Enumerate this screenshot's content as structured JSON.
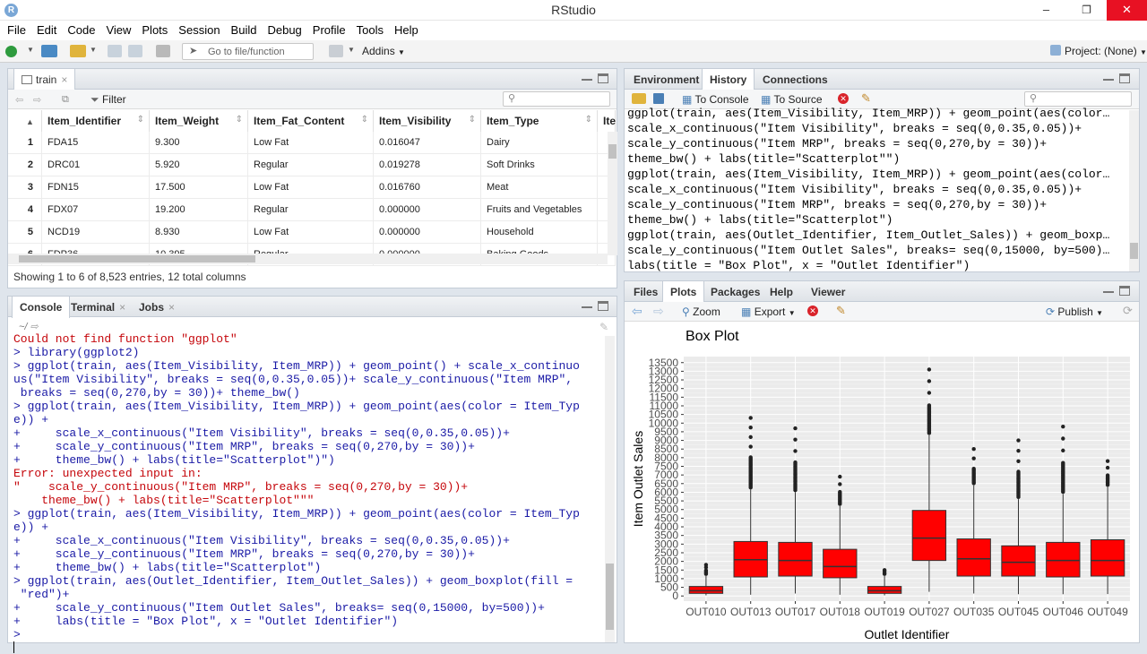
{
  "window": {
    "title": "RStudio",
    "app_icon": "R"
  },
  "menu": [
    "File",
    "Edit",
    "Code",
    "View",
    "Plots",
    "Session",
    "Build",
    "Debug",
    "Profile",
    "Tools",
    "Help"
  ],
  "toolbar": {
    "goto_placeholder": "Go to file/function",
    "addins": "Addins",
    "project": "Project: (None)"
  },
  "data_viewer": {
    "tab": "train",
    "filter": "Filter",
    "columns": [
      "Item_Identifier",
      "Item_Weight",
      "Item_Fat_Content",
      "Item_Visibility",
      "Item_Type",
      "Ite"
    ],
    "rows": [
      {
        "n": "1",
        "vals": [
          "FDA15",
          "9.300",
          "Low Fat",
          "0.016047",
          "Dairy"
        ]
      },
      {
        "n": "2",
        "vals": [
          "DRC01",
          "5.920",
          "Regular",
          "0.019278",
          "Soft Drinks"
        ]
      },
      {
        "n": "3",
        "vals": [
          "FDN15",
          "17.500",
          "Low Fat",
          "0.016760",
          "Meat"
        ]
      },
      {
        "n": "4",
        "vals": [
          "FDX07",
          "19.200",
          "Regular",
          "0.000000",
          "Fruits and Vegetables"
        ]
      },
      {
        "n": "5",
        "vals": [
          "NCD19",
          "8.930",
          "Low Fat",
          "0.000000",
          "Household"
        ]
      },
      {
        "n": "6",
        "vals": [
          "FDP36",
          "10.395",
          "Regular",
          "0.000000",
          "Baking Goods"
        ]
      }
    ],
    "status": "Showing 1 to 6 of 8,523 entries, 12 total columns"
  },
  "console": {
    "tabs": [
      "Console",
      "Terminal",
      "Jobs"
    ],
    "path": "~/",
    "lines": [
      {
        "t": "Could not find function \"ggplot\"",
        "k": "err"
      },
      {
        "t": "> library(ggplot2)",
        "k": "in"
      },
      {
        "t": "> ggplot(train, aes(Item_Visibility, Item_MRP)) + geom_point() + scale_x_continuo",
        "k": "in"
      },
      {
        "t": "us(\"Item Visibility\", breaks = seq(0,0.35,0.05))+ scale_y_continuous(\"Item MRP\",",
        "k": "in"
      },
      {
        "t": " breaks = seq(0,270,by = 30))+ theme_bw()",
        "k": "in"
      },
      {
        "t": "> ggplot(train, aes(Item_Visibility, Item_MRP)) + geom_point(aes(color = Item_Typ",
        "k": "in"
      },
      {
        "t": "e)) +",
        "k": "in"
      },
      {
        "t": "+     scale_x_continuous(\"Item Visibility\", breaks = seq(0,0.35,0.05))+",
        "k": "in"
      },
      {
        "t": "+     scale_y_continuous(\"Item MRP\", breaks = seq(0,270,by = 30))+",
        "k": "in"
      },
      {
        "t": "+     theme_bw() + labs(title=\"Scatterplot\")\")",
        "k": "in"
      },
      {
        "t": "Error: unexpected input in:",
        "k": "err"
      },
      {
        "t": "\"    scale_y_continuous(\"Item MRP\", breaks = seq(0,270,by = 30))+",
        "k": "err"
      },
      {
        "t": "    theme_bw() + labs(title=\"Scatterplot\"\"\"",
        "k": "err"
      },
      {
        "t": "> ggplot(train, aes(Item_Visibility, Item_MRP)) + geom_point(aes(color = Item_Typ",
        "k": "in"
      },
      {
        "t": "e)) +",
        "k": "in"
      },
      {
        "t": "+     scale_x_continuous(\"Item Visibility\", breaks = seq(0,0.35,0.05))+",
        "k": "in"
      },
      {
        "t": "+     scale_y_continuous(\"Item MRP\", breaks = seq(0,270,by = 30))+",
        "k": "in"
      },
      {
        "t": "+     theme_bw() + labs(title=\"Scatterplot\")",
        "k": "in"
      },
      {
        "t": "> ggplot(train, aes(Outlet_Identifier, Item_Outlet_Sales)) + geom_boxplot(fill =",
        "k": "in"
      },
      {
        "t": " \"red\")+",
        "k": "in"
      },
      {
        "t": "+     scale_y_continuous(\"Item Outlet Sales\", breaks= seq(0,15000, by=500))+",
        "k": "in"
      },
      {
        "t": "+     labs(title = \"Box Plot\", x = \"Outlet Identifier\")",
        "k": "in"
      },
      {
        "t": "> ",
        "k": "in"
      }
    ]
  },
  "environment": {
    "tabs": [
      "Environment",
      "History",
      "Connections"
    ],
    "to_console": "To Console",
    "to_source": "To Source",
    "history": [
      "ggplot(train, aes(Item_Visibility, Item_MRP)) + geom_point(aes(color…",
      "scale_x_continuous(\"Item Visibility\", breaks = seq(0,0.35,0.05))+",
      "scale_y_continuous(\"Item MRP\", breaks = seq(0,270,by = 30))+",
      "theme_bw() + labs(title=\"Scatterplot\"\")",
      "ggplot(train, aes(Item_Visibility, Item_MRP)) + geom_point(aes(color…",
      "scale_x_continuous(\"Item Visibility\", breaks = seq(0,0.35,0.05))+",
      "scale_y_continuous(\"Item MRP\", breaks = seq(0,270,by = 30))+",
      "theme_bw() + labs(title=\"Scatterplot\")",
      "ggplot(train, aes(Outlet_Identifier, Item_Outlet_Sales)) + geom_boxp…",
      "scale_y_continuous(\"Item Outlet Sales\", breaks= seq(0,15000, by=500)…",
      "labs(title = \"Box Plot\", x = \"Outlet Identifier\")"
    ]
  },
  "plots": {
    "tabs": [
      "Files",
      "Plots",
      "Packages",
      "Help",
      "Viewer"
    ],
    "zoom": "Zoom",
    "export": "Export",
    "publish": "Publish"
  },
  "chart_data": {
    "type": "boxplot",
    "title": "Box Plot",
    "xlabel": "Outlet Identifier",
    "ylabel": "Item Outlet Sales",
    "ylim": [
      0,
      13500
    ],
    "yticks": [
      0,
      500,
      1000,
      1500,
      2000,
      2500,
      3000,
      3500,
      4000,
      4500,
      5000,
      5500,
      6000,
      6500,
      7000,
      7500,
      8000,
      8500,
      9000,
      9500,
      10000,
      10500,
      11000,
      11500,
      12000,
      12500,
      13000,
      13500
    ],
    "fill": "#ff0000",
    "categories": [
      "OUT010",
      "OUT013",
      "OUT017",
      "OUT018",
      "OUT019",
      "OUT027",
      "OUT035",
      "OUT045",
      "OUT046",
      "OUT049"
    ],
    "boxes": [
      {
        "q1": 150,
        "median": 300,
        "q3": 550,
        "whisk_lo": 35,
        "whisk_hi": 1150,
        "outlier_max": 1800
      },
      {
        "q1": 1100,
        "median": 2100,
        "q3": 3150,
        "whisk_lo": 70,
        "whisk_hi": 6150,
        "outlier_max": 10300
      },
      {
        "q1": 1150,
        "median": 2050,
        "q3": 3100,
        "whisk_lo": 140,
        "whisk_hi": 6000,
        "outlier_max": 9700
      },
      {
        "q1": 1050,
        "median": 1700,
        "q3": 2700,
        "whisk_lo": 70,
        "whisk_hi": 5200,
        "outlier_max": 6900
      },
      {
        "q1": 150,
        "median": 300,
        "q3": 550,
        "whisk_lo": 35,
        "whisk_hi": 1150,
        "outlier_max": 1500
      },
      {
        "q1": 2050,
        "median": 3350,
        "q3": 4950,
        "whisk_lo": 240,
        "whisk_hi": 9300,
        "outlier_max": 13100
      },
      {
        "q1": 1150,
        "median": 2150,
        "q3": 3300,
        "whisk_lo": 140,
        "whisk_hi": 6400,
        "outlier_max": 8500
      },
      {
        "q1": 1150,
        "median": 1950,
        "q3": 2900,
        "whisk_lo": 100,
        "whisk_hi": 5600,
        "outlier_max": 9000
      },
      {
        "q1": 1100,
        "median": 2050,
        "q3": 3100,
        "whisk_lo": 100,
        "whisk_hi": 5900,
        "outlier_max": 9800
      },
      {
        "q1": 1150,
        "median": 2050,
        "q3": 3250,
        "whisk_lo": 110,
        "whisk_hi": 6300,
        "outlier_max": 7800
      }
    ]
  }
}
